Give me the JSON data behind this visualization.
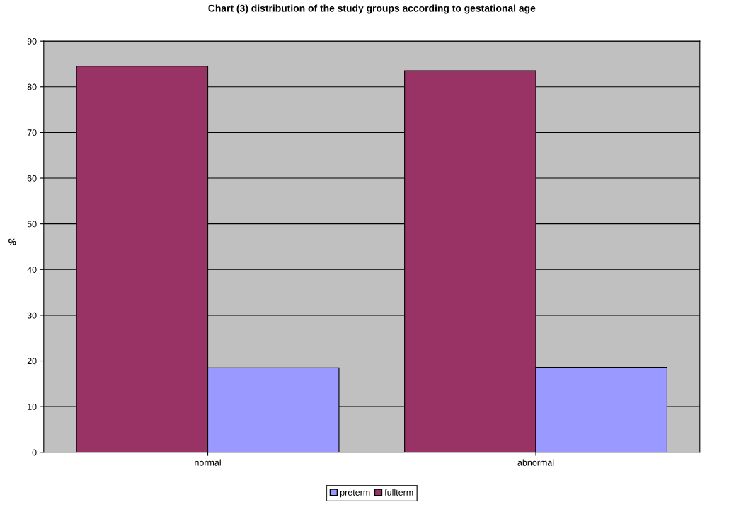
{
  "chart_data": {
    "type": "bar",
    "title": "Chart (3) distribution of the study groups according to gestational age",
    "ylabel": "%",
    "categories": [
      "normal",
      "abnormal"
    ],
    "series": [
      {
        "name": "fullterm",
        "color": "#993366",
        "values": [
          84.5,
          83.5
        ]
      },
      {
        "name": "preterm",
        "color": "#9999ff",
        "values": [
          18.5,
          18.6
        ]
      }
    ],
    "ylim": [
      0,
      90
    ],
    "yticks": [
      0,
      10,
      20,
      30,
      40,
      50,
      60,
      70,
      80,
      90
    ],
    "grid": "y",
    "legend": "bottom"
  }
}
